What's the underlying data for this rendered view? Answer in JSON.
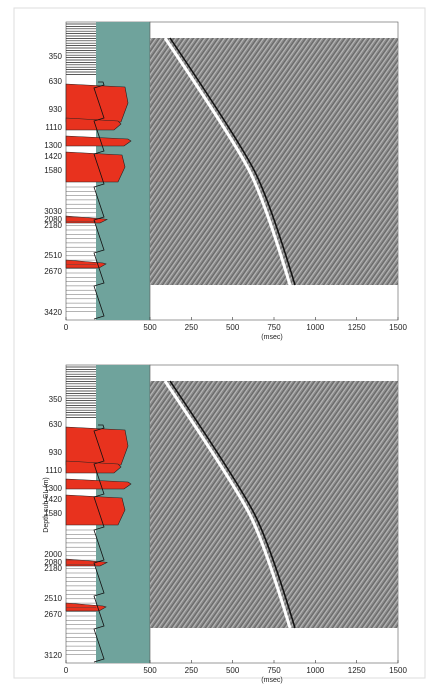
{
  "panels": [
    {
      "depth_labels": [
        "350",
        "630",
        "930",
        "1110",
        "1300",
        "1420",
        "1580",
        "3030",
        "2080",
        "2180",
        "2510",
        "2670",
        "3420"
      ],
      "log_axis": {
        "xlim": [
          0,
          500
        ],
        "xticks": [
          0,
          500
        ]
      },
      "seismic_axis": {
        "xlim": [
          0,
          1500
        ],
        "xticks": [
          250,
          500,
          750,
          1000,
          1250,
          1500
        ]
      },
      "xlabel": "(msec)"
    },
    {
      "depth_labels": [
        "350",
        "630",
        "930",
        "1110",
        "1300",
        "1420",
        "1580",
        "2000",
        "2080",
        "2180",
        "2510",
        "2670",
        "3120"
      ],
      "log_axis": {
        "xlim": [
          0,
          500
        ],
        "xticks": [
          0,
          500
        ]
      },
      "seismic_axis": {
        "xlim": [
          0,
          1500
        ],
        "xticks": [
          250,
          500,
          750,
          1000,
          1250,
          1500
        ]
      },
      "xlabel": "(msec)",
      "ylabel": "Depth sub GL (m)"
    }
  ]
}
